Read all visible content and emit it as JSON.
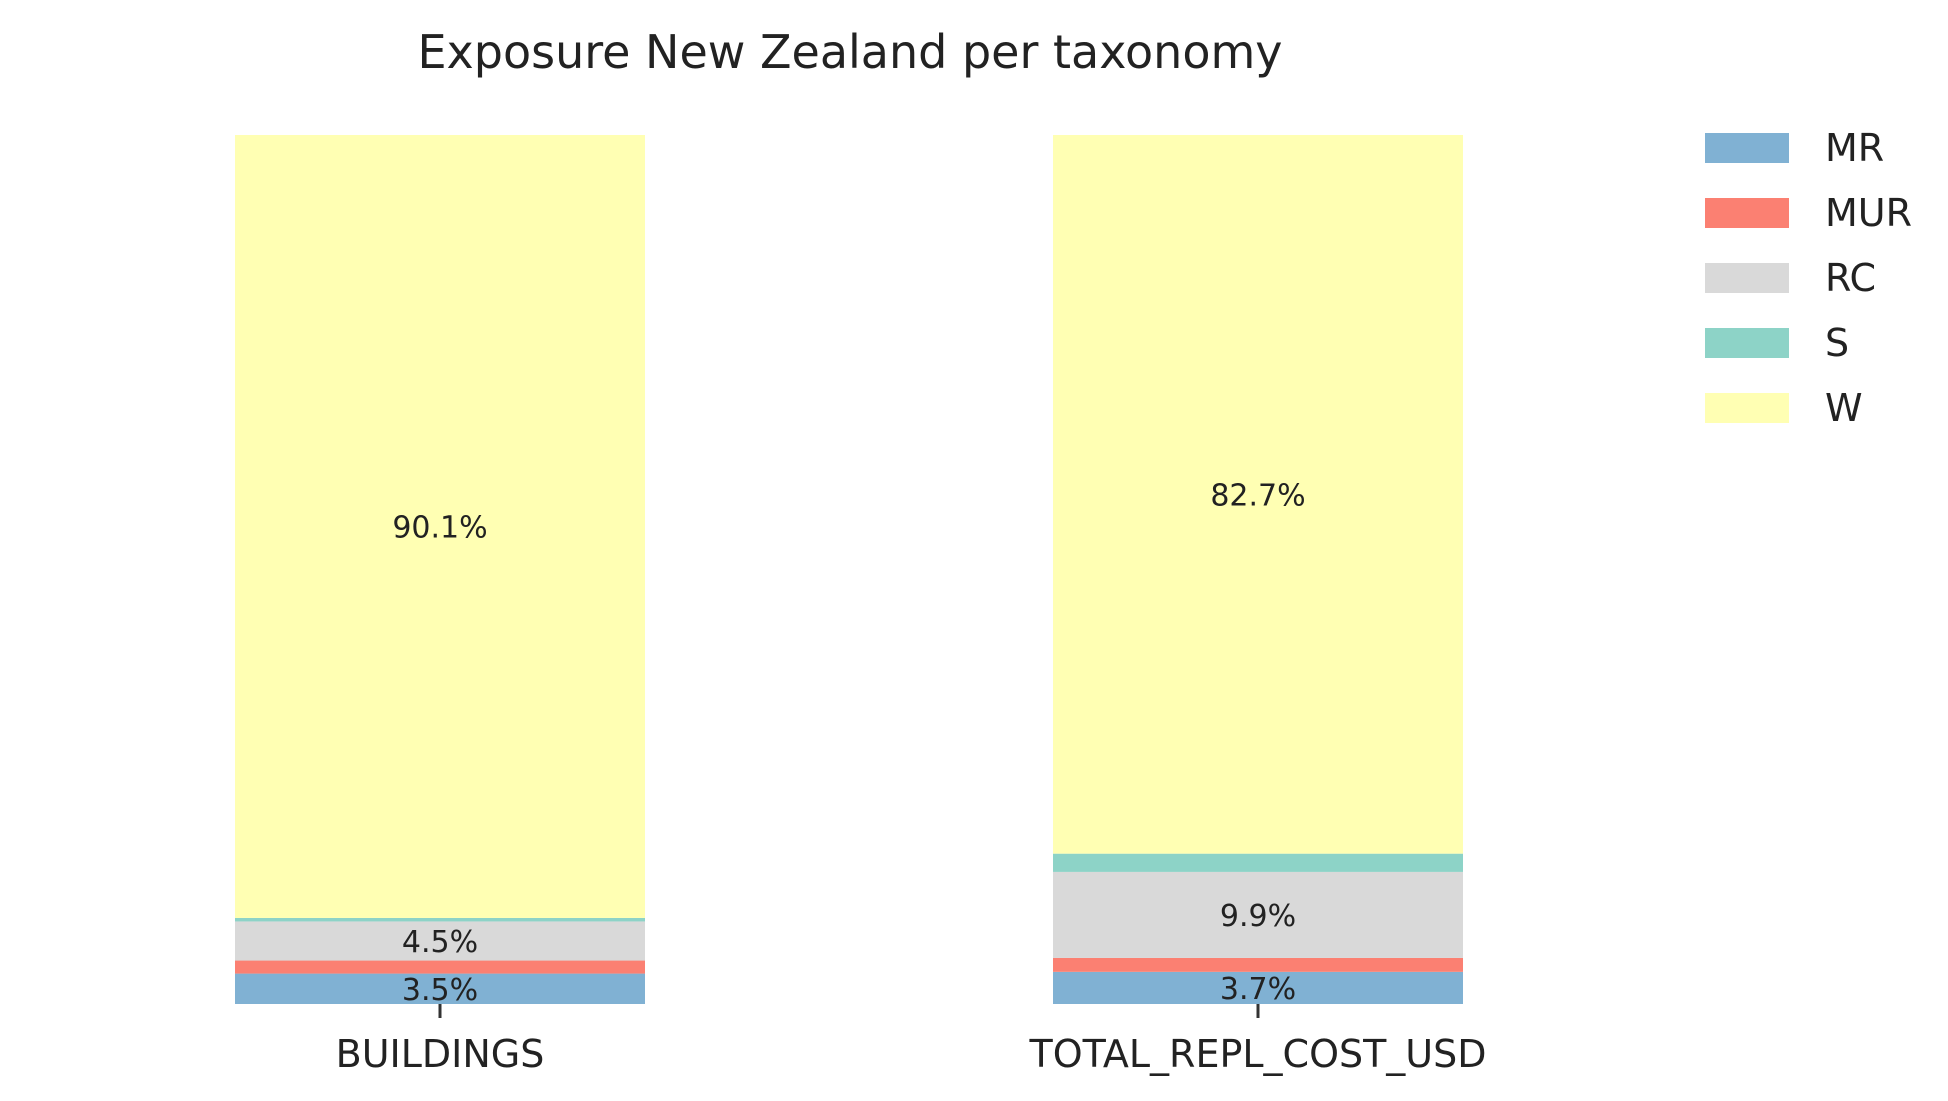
{
  "chart_data": {
    "type": "bar",
    "stacked": true,
    "normalized": true,
    "title": "Exposure New Zealand per taxonomy",
    "xlabel": "",
    "ylabel": "",
    "categories": [
      "BUILDINGS",
      "TOTAL_REPL_COST_USD"
    ],
    "ylim": [
      0,
      100
    ],
    "grid": false,
    "legend_position": "top-right",
    "series": [
      {
        "name": "MR",
        "color": "#80b1d3",
        "values": [
          3.5,
          3.7
        ]
      },
      {
        "name": "MUR",
        "color": "#fb8072",
        "values": [
          1.5,
          1.6
        ]
      },
      {
        "name": "RC",
        "color": "#d9d9d9",
        "values": [
          4.5,
          9.9
        ]
      },
      {
        "name": "S",
        "color": "#8dd3c7",
        "values": [
          0.4,
          2.1
        ]
      },
      {
        "name": "W",
        "color": "#ffffb3",
        "values": [
          90.1,
          82.7
        ]
      }
    ],
    "data_labels": [
      [
        "3.5%",
        "3.7%"
      ],
      [
        "",
        ""
      ],
      [
        "4.5%",
        "9.9%"
      ],
      [
        "",
        ""
      ],
      [
        "90.1%",
        "82.7%"
      ]
    ]
  }
}
